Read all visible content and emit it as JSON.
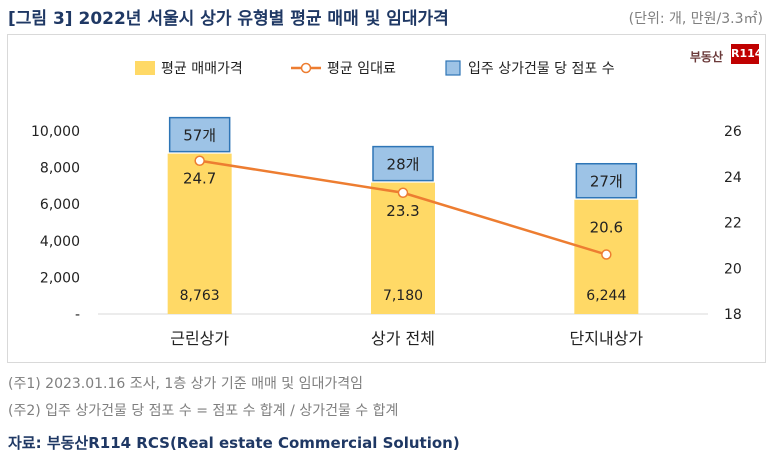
{
  "header": {
    "title": "[그림 3] 2022년 서울시 상가 유형별 평균 매매 및 임대가격",
    "unit": "(단위: 개, 만원/3.3㎡)"
  },
  "watermark": {
    "text": "부동산",
    "badge": "R114"
  },
  "colors": {
    "bar": "#ffd966",
    "line": "#ed7d31",
    "box_fill": "#9dc3e6",
    "box_border": "#2e75b6",
    "title": "#1f3864"
  },
  "chart_data": {
    "type": "bar",
    "categories": [
      "근린상가",
      "상가 전체",
      "단지내상가"
    ],
    "series": [
      {
        "name": "평균 매매가격",
        "type": "bar",
        "axis": "left",
        "values": [
          8763,
          7180,
          6244
        ],
        "labels": [
          "8,763",
          "7,180",
          "6,244"
        ]
      },
      {
        "name": "평균 임대료",
        "type": "line",
        "axis": "right",
        "values": [
          24.7,
          23.3,
          20.6
        ],
        "labels": [
          "24.7",
          "23.3",
          "20.6"
        ]
      },
      {
        "name": "입주 상가건물 당 점포 수",
        "type": "box-label",
        "values": [
          57,
          28,
          27
        ],
        "labels": [
          "57개",
          "28개",
          "27개"
        ]
      }
    ],
    "y_left": {
      "ylim": [
        0,
        10000
      ],
      "ticks": [
        "-",
        "2,000",
        "4,000",
        "6,000",
        "8,000",
        "10,000"
      ]
    },
    "y_right": {
      "ylim": [
        18,
        26
      ],
      "ticks": [
        "18",
        "20",
        "22",
        "24",
        "26"
      ]
    },
    "legend_position": "top",
    "grid": false
  },
  "notes": [
    "(주1) 2023.01.16 조사, 1층 상가 기준 매매 및 임대가격임",
    "(주2) 입주 상가건물 당 점포 수 = 점포 수 합계 / 상가건물 수 합계"
  ],
  "source": "자료: 부동산R114 RCS(Real estate Commercial Solution)"
}
